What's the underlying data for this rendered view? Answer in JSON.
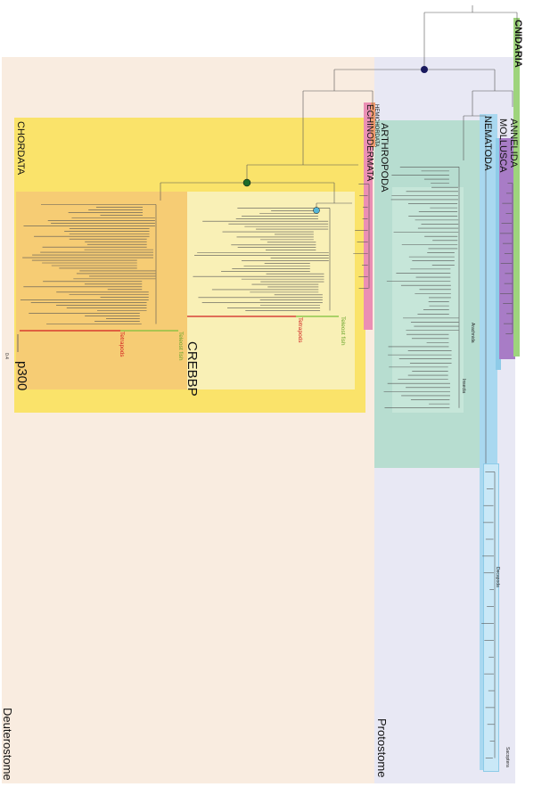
{
  "groups": {
    "cnidaria": "CNIDARIA",
    "annelida": "ANNELIDA",
    "mollusca": "MOLLUSCA",
    "nematoda": "NEMATODA",
    "arthropoda": "ARTHROPODA",
    "hemichordata": "HEMICHORDATA",
    "echinodermata": "ECHINODERMATA",
    "chordata": "CHORDATA"
  },
  "paralogs": {
    "crebbp": "CREBBP",
    "p300": "p300"
  },
  "superclades": {
    "deuterostome": "Deuterostome",
    "protostome": "Protostome"
  },
  "sublabels": {
    "teleost_fish_1": "Teleost fish",
    "tetrapods_1": "Tetrapods",
    "teleost_fish_2": "Teleost fish",
    "tetrapods_2": "Tetrapods",
    "arachnida": "Arachnida",
    "insecta": "Insecta",
    "decapoda": "Decapoda",
    "sacoptera": "Sacoptera"
  },
  "scale_bar": "0.4",
  "colors": {
    "deuterostome_bg": "#f9ece0",
    "protostome_bg": "#e8e8f4",
    "chordata": "#fae36a",
    "crebbp": "#f9f0b6",
    "p300": "#f6cc74",
    "arthropoda": "#b7ddd0",
    "nematoda": "#a9d8f0",
    "mollusca": "#8ecbe8",
    "annelida": "#a87cc6",
    "cnidaria": "#9ed47c",
    "echinodermata": "#eb8fb4",
    "hemichordata": "#ef9b6f",
    "tetrapods": "#d12020",
    "teleost": "#7cbf3a"
  }
}
